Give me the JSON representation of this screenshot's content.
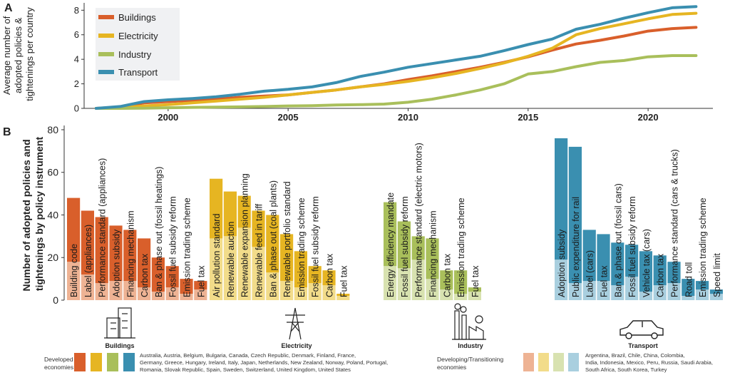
{
  "colors": {
    "buildings": "#d95f2b",
    "electricity": "#e6b522",
    "industry": "#a9bf5b",
    "transport": "#3a8fb0",
    "buildings_light": "#eeb394",
    "electricity_light": "#f2dc8a",
    "industry_light": "#d8e2b0",
    "transport_light": "#a9cfdf",
    "axis": "#333333",
    "text": "#222222"
  },
  "chart_data": [
    {
      "id": "A",
      "panel_label": "A",
      "type": "line",
      "ylabel": "Average number of adopted policies & tightenings per country",
      "ylabel_lines": [
        "Average number of",
        "adopted policies &",
        "tightenings per country"
      ],
      "xlabel": "",
      "xlim": [
        1996.5,
        2022.7
      ],
      "ylim": [
        0,
        8.6
      ],
      "yticks": [
        0,
        2,
        4,
        6,
        8
      ],
      "xticks": [
        2000,
        2005,
        2010,
        2015,
        2020
      ],
      "x": [
        1997,
        1998,
        1999,
        2000,
        2001,
        2002,
        2003,
        2004,
        2005,
        2006,
        2007,
        2008,
        2009,
        2010,
        2011,
        2012,
        2013,
        2014,
        2015,
        2016,
        2017,
        2018,
        2019,
        2020,
        2021,
        2022
      ],
      "series": [
        {
          "name": "Buildings",
          "color_key": "buildings",
          "values": [
            0.0,
            0.1,
            0.45,
            0.55,
            0.65,
            0.75,
            0.9,
            1.0,
            1.1,
            1.3,
            1.5,
            1.75,
            2.0,
            2.35,
            2.65,
            3.0,
            3.35,
            3.75,
            4.2,
            4.75,
            5.25,
            5.55,
            5.9,
            6.3,
            6.5,
            6.6
          ]
        },
        {
          "name": "Electricity",
          "color_key": "electricity",
          "values": [
            0.0,
            0.05,
            0.2,
            0.3,
            0.45,
            0.6,
            0.75,
            0.9,
            1.1,
            1.3,
            1.5,
            1.75,
            1.95,
            2.2,
            2.5,
            2.85,
            3.25,
            3.7,
            4.25,
            4.9,
            6.0,
            6.5,
            6.9,
            7.3,
            7.65,
            7.75
          ]
        },
        {
          "name": "Industry",
          "color_key": "industry",
          "values": [
            0.0,
            0.0,
            0.02,
            0.05,
            0.08,
            0.1,
            0.12,
            0.15,
            0.2,
            0.22,
            0.28,
            0.3,
            0.35,
            0.5,
            0.75,
            1.1,
            1.5,
            2.0,
            2.8,
            3.0,
            3.4,
            3.75,
            3.9,
            4.2,
            4.3,
            4.3
          ]
        },
        {
          "name": "Transport",
          "color_key": "transport",
          "values": [
            0.0,
            0.15,
            0.55,
            0.7,
            0.8,
            0.95,
            1.15,
            1.4,
            1.55,
            1.75,
            2.1,
            2.6,
            2.95,
            3.35,
            3.65,
            3.95,
            4.25,
            4.7,
            5.2,
            5.65,
            6.45,
            6.85,
            7.35,
            7.8,
            8.2,
            8.3
          ]
        }
      ]
    },
    {
      "id": "B",
      "panel_label": "B",
      "type": "bar",
      "ylabel": "Number of adopted policies and tightenings by policy instrument",
      "ylabel_lines": [
        "Number of adopted policies and",
        "tightenings by policy instrument"
      ],
      "ylim": [
        0,
        82
      ],
      "yticks": [
        0,
        20,
        40,
        60,
        80
      ],
      "stacked_series": [
        "Developing/Transitioning economies (lower, light)",
        "Developed economies (upper, dark)"
      ],
      "groups": [
        {
          "sector": "Buildings",
          "color_key": "buildings",
          "categories": [
            "Building code",
            "Label (appliances)",
            "Performance standard (appliances)",
            "Adoption subsidy",
            "Financing mechanism",
            "Carbon tax",
            "Ban & phase out (fossil heatings)",
            "Fossil fuel subsidy reform",
            "Emission trading scheme",
            "Fuel tax"
          ],
          "totals": [
            48,
            42,
            39,
            35,
            33,
            29,
            20,
            16,
            10,
            9
          ],
          "developing": [
            18,
            12,
            8,
            9,
            9,
            6,
            4,
            6,
            3,
            5
          ]
        },
        {
          "sector": "Electricity",
          "color_key": "electricity",
          "categories": [
            "Air pollution standard",
            "Renewable auction",
            "Renewable expansion planning",
            "Renewable feed in tariff",
            "Ban & phase out (coal plants)",
            "Renewable portfolio standard",
            "Emission trading scheme",
            "Fossil fuel subsidy reform",
            "Carbon tax",
            "Fuel tax"
          ],
          "totals": [
            57,
            51,
            49,
            42,
            40,
            31,
            23,
            16,
            14,
            3
          ],
          "developing": [
            29,
            30,
            34,
            25,
            13,
            9,
            6,
            8,
            7,
            2
          ]
        },
        {
          "sector": "Industry",
          "color_key": "industry",
          "categories": [
            "Energy efficiency mandate",
            "Fossil fuel subsidy reform",
            "Performance standard (electric motors)",
            "Financing mechanism",
            "Carbon tax",
            "Emission trading scheme",
            "Fuel tax"
          ],
          "totals": [
            46,
            37,
            30,
            29,
            14,
            14,
            6
          ],
          "developing": [
            16,
            15,
            19,
            10,
            5,
            3,
            4
          ]
        },
        {
          "sector": "Transport",
          "color_key": "transport",
          "categories": [
            "Adoption subsidy",
            "Public expenditure for rail",
            "Label (cars)",
            "Fuel tax",
            "Ban & phase out (fossil cars)",
            "Fossil fuel subsidy reform",
            "Vehicle tax (cars)",
            "Carbon tax",
            "Performance standard (cars & trucks)",
            "Road toll",
            "Emission trading scheme",
            "Speed limit"
          ],
          "totals": [
            76,
            72,
            33,
            31,
            27,
            26,
            23,
            21,
            18,
            10,
            9,
            5
          ],
          "developing": [
            19,
            8,
            9,
            9,
            7,
            11,
            4,
            7,
            8,
            2,
            5,
            3
          ]
        }
      ]
    }
  ],
  "legend_a": [
    "Buildings",
    "Electricity",
    "Industry",
    "Transport"
  ],
  "sectors": {
    "buildings": "Buildings",
    "electricity": "Electricity",
    "industry": "Industry",
    "transport": "Transport"
  },
  "legend_b": {
    "developed_label_1": "Developed",
    "developed_label_2": "economies",
    "developed_list_1": "Australia, Austria, Belgium, Bulgaria, Canada, Czech Republic, Denmark, Finland, France,",
    "developed_list_2": "Germany, Greece, Hungary, Ireland, Italy, Japan, Netherlands, New Zealand, Norway, Poland, Portugal,",
    "developed_list_3": "Romania, Slovak Republic, Spain, Sweden, Switzerland, United Kingdom, United States",
    "developing_label_1": "Developing/Transitioning",
    "developing_label_2": "economies",
    "developing_list_1": "Argentina, Brazil, Chile, China, Colombia,",
    "developing_list_2": "India, Indonesia, Mexico, Peru, Russia, Saudi Arabia,",
    "developing_list_3": "South Africa, South Korea, Turkey"
  }
}
